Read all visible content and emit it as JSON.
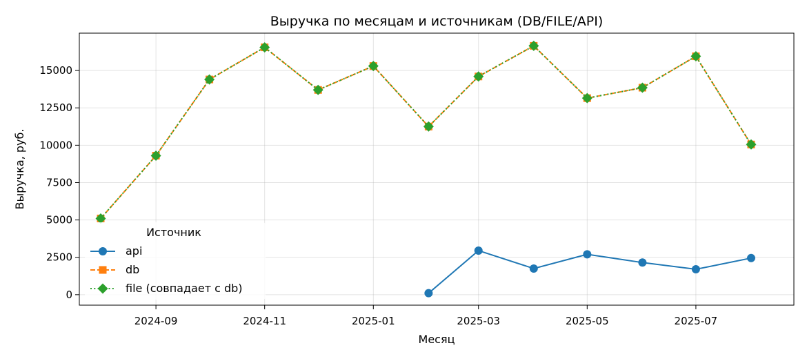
{
  "chart_data": {
    "type": "line",
    "title": "Выручка по месяцам и источникам (DB/FILE/API)",
    "xlabel": "Месяц",
    "ylabel": "Выручка, руб.",
    "x": [
      "2024-08-01",
      "2024-09-01",
      "2024-10-01",
      "2024-11-01",
      "2024-12-01",
      "2025-01-01",
      "2025-02-01",
      "2025-03-01",
      "2025-04-01",
      "2025-05-01",
      "2025-06-01",
      "2025-07-01",
      "2025-08-01"
    ],
    "x_ticks": [
      "2024-09-01",
      "2024-11-01",
      "2025-01-01",
      "2025-03-01",
      "2025-05-01",
      "2025-07-01"
    ],
    "x_tick_labels": [
      "2024-09",
      "2024-11",
      "2025-01",
      "2025-03",
      "2025-05",
      "2025-07"
    ],
    "xlim": [
      "2024-07-20",
      "2025-08-25"
    ],
    "ylim": [
      -700,
      17500
    ],
    "y_ticks": [
      0,
      2500,
      5000,
      7500,
      10000,
      12500,
      15000
    ],
    "y_tick_labels": [
      "0",
      "2500",
      "5000",
      "7500",
      "10000",
      "12500",
      "15000"
    ],
    "grid": true,
    "legend": {
      "title": "Источник",
      "placement": "lower-left"
    },
    "series": [
      {
        "name": "api",
        "color": "#1f77b4",
        "marker": "circle",
        "linestyle": "solid",
        "values": [
          null,
          null,
          null,
          null,
          null,
          null,
          100,
          2950,
          1750,
          2700,
          2150,
          1700,
          2450
        ]
      },
      {
        "name": "db",
        "color": "#ff7f0e",
        "marker": "square",
        "linestyle": "dashed",
        "values": [
          5100,
          9300,
          14400,
          16550,
          13700,
          15300,
          11250,
          14600,
          16650,
          13150,
          13850,
          15950,
          10050
        ]
      },
      {
        "name": "file (совпадает с db)",
        "color": "#2ca02c",
        "marker": "diamond",
        "linestyle": "dotted",
        "values": [
          5100,
          9300,
          14400,
          16550,
          13700,
          15300,
          11250,
          14600,
          16650,
          13150,
          13850,
          15950,
          10050
        ]
      }
    ]
  }
}
